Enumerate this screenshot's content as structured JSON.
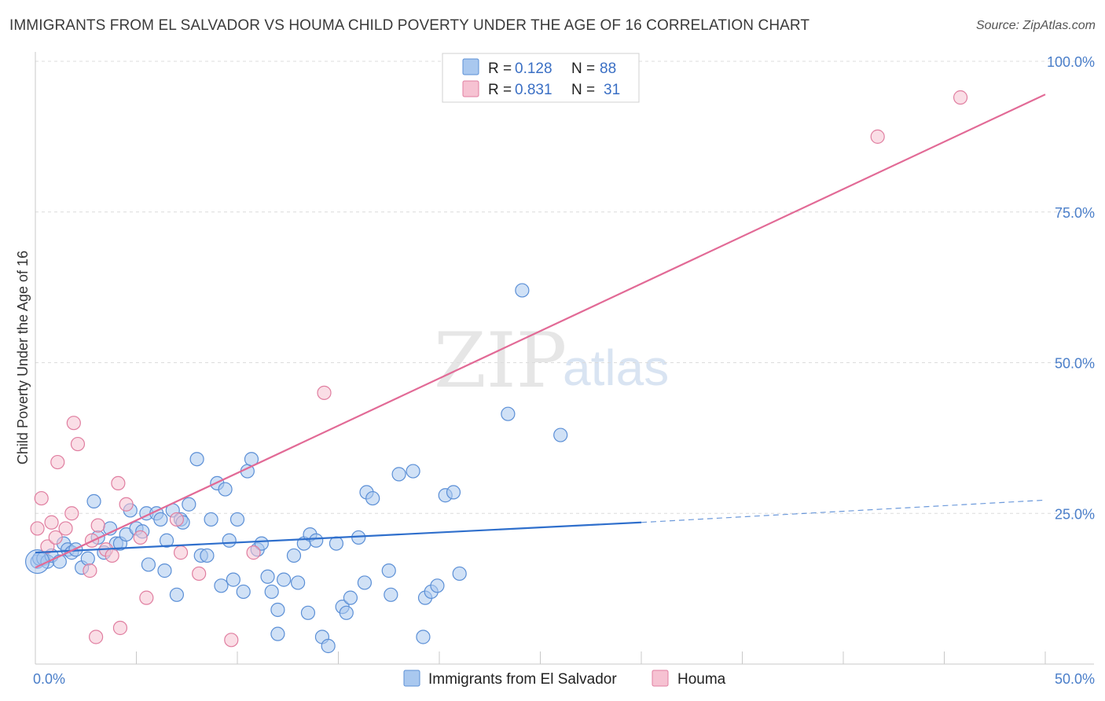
{
  "title": "IMMIGRANTS FROM EL SALVADOR VS HOUMA CHILD POVERTY UNDER THE AGE OF 16 CORRELATION CHART",
  "source": "Source: ZipAtlas.com",
  "watermark": {
    "zip": "ZIP",
    "atlas": "atlas"
  },
  "legend_top": [
    {
      "r_label": "R =",
      "r_value": "0.128",
      "n_label": "N =",
      "n_value": "88",
      "color": "#a9c8ef",
      "edge": "#5b8fd6"
    },
    {
      "r_label": "R =",
      "r_value": "0.831",
      "n_label": "N =",
      "n_value": "31",
      "color": "#f6c2d2",
      "edge": "#e07ea0"
    }
  ],
  "chart_data": {
    "type": "scatter",
    "title": "IMMIGRANTS FROM EL SALVADOR VS HOUMA CHILD POVERTY UNDER THE AGE OF 16 CORRELATION CHART",
    "xlabel": "",
    "ylabel": "Child Poverty Under the Age of 16",
    "xlim": [
      0,
      50
    ],
    "ylim": [
      0,
      100
    ],
    "x_tick_labels": [
      "0.0%",
      "50.0%"
    ],
    "y_tick_labels": [
      "100.0%",
      "75.0%",
      "50.0%",
      "25.0%"
    ],
    "y_tick_values": [
      100,
      75,
      50,
      25
    ],
    "grid": "horizontal dashed",
    "legend_position": "bottom",
    "series": [
      {
        "name": "Immigrants from El Salvador",
        "color": "#a9c8ef",
        "edge": "#5b8fd6",
        "line_color": "#2f6fcc",
        "trend": {
          "x": [
            0,
            30
          ],
          "y": [
            18.5,
            23.5
          ]
        },
        "trend_dashed": {
          "x": [
            30,
            50
          ],
          "y": [
            23.5,
            27.2
          ]
        },
        "points": [
          [
            0.1,
            17
          ],
          [
            0.2,
            17.5
          ],
          [
            0.4,
            17.5
          ],
          [
            0.6,
            17
          ],
          [
            0.8,
            18
          ],
          [
            1.2,
            17
          ],
          [
            1.4,
            20
          ],
          [
            1.6,
            19
          ],
          [
            1.8,
            18.5
          ],
          [
            2.0,
            19
          ],
          [
            2.3,
            16
          ],
          [
            2.6,
            17.5
          ],
          [
            2.9,
            27
          ],
          [
            3.1,
            21
          ],
          [
            3.4,
            18.5
          ],
          [
            3.7,
            22.5
          ],
          [
            4.0,
            20
          ],
          [
            4.2,
            20
          ],
          [
            4.5,
            21.5
          ],
          [
            4.7,
            25.5
          ],
          [
            5.0,
            22.5
          ],
          [
            5.3,
            22
          ],
          [
            5.5,
            25
          ],
          [
            5.6,
            16.5
          ],
          [
            6.0,
            25
          ],
          [
            6.2,
            24
          ],
          [
            6.4,
            15.5
          ],
          [
            6.5,
            20.5
          ],
          [
            6.8,
            25.5
          ],
          [
            7.0,
            11.5
          ],
          [
            7.2,
            24
          ],
          [
            7.3,
            23.5
          ],
          [
            7.6,
            26.5
          ],
          [
            8.0,
            34
          ],
          [
            8.2,
            18
          ],
          [
            8.5,
            18
          ],
          [
            8.7,
            24
          ],
          [
            9.0,
            30
          ],
          [
            9.2,
            13
          ],
          [
            9.4,
            29
          ],
          [
            9.6,
            20.5
          ],
          [
            9.8,
            14
          ],
          [
            10.0,
            24
          ],
          [
            10.3,
            12
          ],
          [
            10.5,
            32
          ],
          [
            10.7,
            34
          ],
          [
            11.0,
            19
          ],
          [
            11.2,
            20
          ],
          [
            11.5,
            14.5
          ],
          [
            11.7,
            12
          ],
          [
            12.0,
            9
          ],
          [
            12.0,
            5
          ],
          [
            12.3,
            14
          ],
          [
            12.8,
            18
          ],
          [
            13.0,
            13.5
          ],
          [
            13.3,
            20
          ],
          [
            13.5,
            8.5
          ],
          [
            13.6,
            21.5
          ],
          [
            13.9,
            20.5
          ],
          [
            14.2,
            4.5
          ],
          [
            14.5,
            3
          ],
          [
            14.9,
            20
          ],
          [
            15.2,
            9.5
          ],
          [
            15.4,
            8.5
          ],
          [
            15.6,
            11
          ],
          [
            16.0,
            21
          ],
          [
            16.3,
            13.5
          ],
          [
            16.4,
            28.5
          ],
          [
            16.7,
            27.5
          ],
          [
            17.5,
            15.5
          ],
          [
            17.6,
            11.5
          ],
          [
            18.0,
            31.5
          ],
          [
            18.7,
            32
          ],
          [
            19.2,
            4.5
          ],
          [
            19.3,
            11
          ],
          [
            19.6,
            12
          ],
          [
            19.9,
            13
          ],
          [
            20.3,
            28
          ],
          [
            20.7,
            28.5
          ],
          [
            21.0,
            15
          ],
          [
            23.4,
            41.5
          ],
          [
            24.1,
            62
          ],
          [
            26.0,
            38
          ]
        ],
        "big_point": [
          0.1,
          17
        ]
      },
      {
        "name": "Houma",
        "color": "#f6c2d2",
        "edge": "#e07ea0",
        "line_color": "#e26a96",
        "trend": {
          "x": [
            0,
            50
          ],
          "y": [
            16,
            94.5
          ]
        },
        "points": [
          [
            0.1,
            22.5
          ],
          [
            0.3,
            27.5
          ],
          [
            0.6,
            19.5
          ],
          [
            0.8,
            23.5
          ],
          [
            1.0,
            21
          ],
          [
            1.1,
            33.5
          ],
          [
            1.5,
            22.5
          ],
          [
            1.8,
            25
          ],
          [
            1.9,
            40
          ],
          [
            2.1,
            36.5
          ],
          [
            2.7,
            15.5
          ],
          [
            2.8,
            20.5
          ],
          [
            3.0,
            4.5
          ],
          [
            3.1,
            23
          ],
          [
            3.5,
            19
          ],
          [
            3.8,
            18
          ],
          [
            4.1,
            30
          ],
          [
            4.2,
            6
          ],
          [
            4.5,
            26.5
          ],
          [
            5.2,
            21
          ],
          [
            5.5,
            11
          ],
          [
            7.0,
            24
          ],
          [
            7.2,
            18.5
          ],
          [
            8.1,
            15
          ],
          [
            9.7,
            4
          ],
          [
            10.8,
            18.5
          ],
          [
            14.3,
            45
          ],
          [
            41.7,
            87.5
          ],
          [
            45.8,
            94
          ]
        ]
      }
    ]
  }
}
